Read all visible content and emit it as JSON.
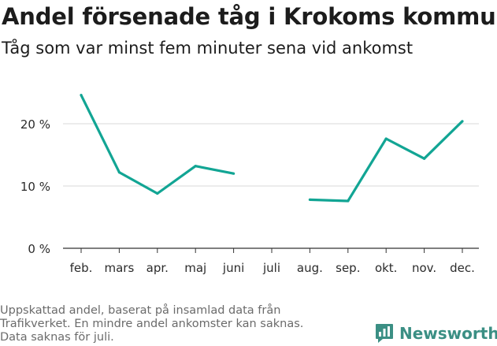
{
  "header": {
    "title": "Andel försenade tåg i Krokoms kommun",
    "subtitle": "Tåg som var minst fem minuter sena vid ankomst"
  },
  "footer": {
    "note_lines": [
      "Uppskattad andel, baserat på insamlad data från",
      "Trafikverket. En mindre andel ankomster kan saknas.",
      "Data saknas för juli."
    ],
    "brand": "Newsworthy"
  },
  "colors": {
    "line": "#12a594",
    "grid": "#d9d9d9",
    "axis": "#333333",
    "brand": "#3b8f84"
  },
  "chart_data": {
    "type": "line",
    "title": "Andel försenade tåg i Krokoms kommun",
    "subtitle": "Tåg som var minst fem minuter sena vid ankomst",
    "categories": [
      "feb.",
      "mars",
      "apr.",
      "maj",
      "juni",
      "juli",
      "aug.",
      "sep.",
      "okt.",
      "nov.",
      "dec."
    ],
    "series": [
      {
        "values": [
          24.6,
          12.2,
          8.8,
          13.2,
          12.0,
          null,
          7.8,
          7.6,
          17.6,
          14.4,
          20.4
        ]
      }
    ],
    "ylim": [
      0,
      25
    ],
    "yticks": [
      0,
      10,
      20
    ],
    "ytick_labels": [
      "0 %",
      "10 %",
      "20 %"
    ],
    "xlabel": "",
    "ylabel": "",
    "grid": true,
    "legend": "none"
  }
}
